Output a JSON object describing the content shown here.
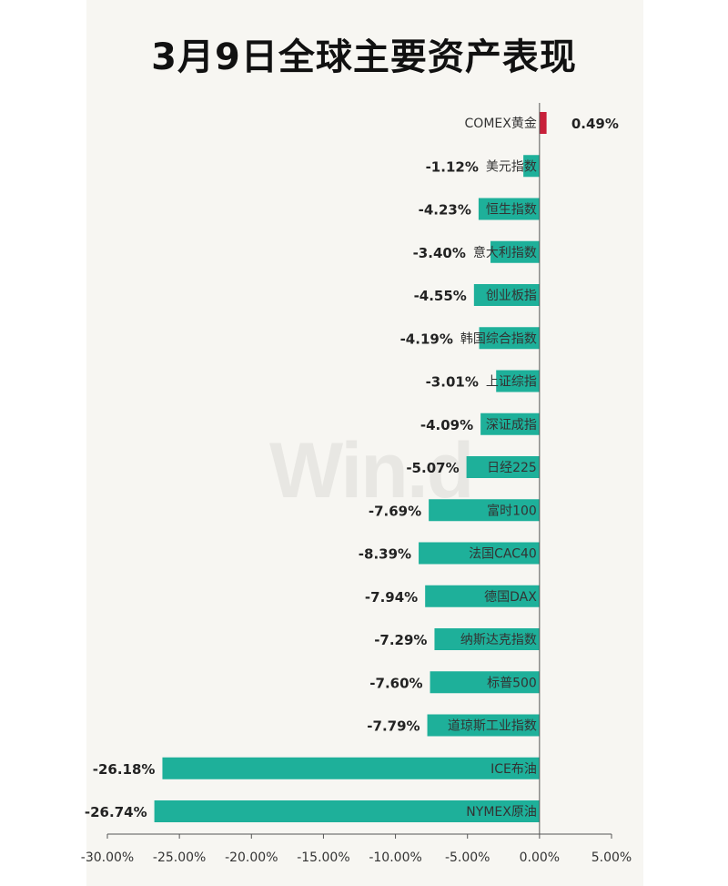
{
  "title": "3月9日全球主要资产表现",
  "watermark": "Win.d",
  "colors": {
    "positive": "#c8203a",
    "negative": "#1eb09a",
    "axis": "#555555",
    "text": "#222222"
  },
  "chart_data": {
    "type": "bar",
    "orientation": "horizontal",
    "title": "3月9日全球主要资产表现",
    "xlabel": "",
    "ylabel": "",
    "xlim": [
      -0.3,
      0.05
    ],
    "xticks": [
      -0.3,
      -0.25,
      -0.2,
      -0.15,
      -0.1,
      -0.05,
      0.0,
      0.05
    ],
    "xtick_labels": [
      "-30.00%",
      "-25.00%",
      "-20.00%",
      "-15.00%",
      "-10.00%",
      "-5.00%",
      "0.00%",
      "5.00%"
    ],
    "grid": false,
    "categories": [
      "COMEX黄金",
      "美元指数",
      "恒生指数",
      "意大利指数",
      "创业板指",
      "韩国综合指数",
      "上证综指",
      "深证成指",
      "日经225",
      "富时100",
      "法国CAC40",
      "德国DAX",
      "纳斯达克指数",
      "标普500",
      "道琼斯工业指数",
      "ICE布油",
      "NYMEX原油"
    ],
    "values": [
      0.0049,
      -0.0112,
      -0.0423,
      -0.034,
      -0.0455,
      -0.0419,
      -0.0301,
      -0.0409,
      -0.0507,
      -0.0769,
      -0.0839,
      -0.0794,
      -0.0729,
      -0.076,
      -0.0779,
      -0.2618,
      -0.2674
    ],
    "value_labels": [
      "0.49%",
      "-1.12%",
      "-4.23%",
      "-3.40%",
      "-4.55%",
      "-4.19%",
      "-3.01%",
      "-4.09%",
      "-5.07%",
      "-7.69%",
      "-8.39%",
      "-7.94%",
      "-7.29%",
      "-7.60%",
      "-7.79%",
      "-26.18%",
      "-26.74%"
    ]
  }
}
